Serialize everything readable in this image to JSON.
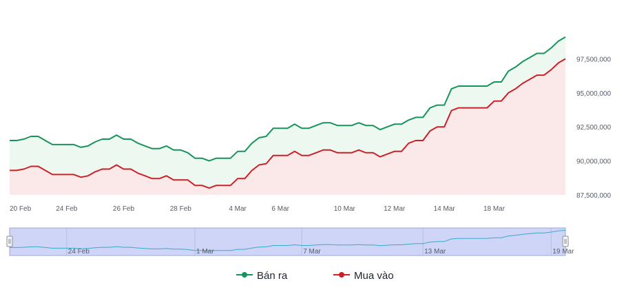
{
  "chart_data": {
    "type": "area",
    "x_ticks": [
      "20 Feb",
      "24 Feb",
      "26 Feb",
      "28 Feb",
      "4 Mar",
      "6 Mar",
      "10 Mar",
      "12 Mar",
      "14 Mar",
      "18 Mar"
    ],
    "y_ticks": [
      "97,500,000",
      "95,000,000",
      "92,500,000",
      "90,000,000",
      "87,500,000"
    ],
    "y_tick_values": [
      97500000,
      95000000,
      92500000,
      90000000,
      87500000
    ],
    "ylim": [
      87500000,
      99800000
    ],
    "grid": false,
    "legend_position": "bottom",
    "series": [
      {
        "name": "Bán ra",
        "color": "#16935a",
        "fill": "#edf8f1",
        "values": [
          91500000,
          91500000,
          91600000,
          91800000,
          91800000,
          91500000,
          91200000,
          91200000,
          91200000,
          91200000,
          91000000,
          91100000,
          91400000,
          91600000,
          91600000,
          91900000,
          91600000,
          91600000,
          91300000,
          91100000,
          90900000,
          90900000,
          91100000,
          90800000,
          90800000,
          90600000,
          90200000,
          90200000,
          90000000,
          90200000,
          90200000,
          90200000,
          90700000,
          90700000,
          91300000,
          91700000,
          91800000,
          92400000,
          92400000,
          92400000,
          92700000,
          92400000,
          92400000,
          92600000,
          92800000,
          92800000,
          92600000,
          92600000,
          92600000,
          92800000,
          92600000,
          92600000,
          92300000,
          92500000,
          92700000,
          92700000,
          93000000,
          93200000,
          93200000,
          93900000,
          94100000,
          94100000,
          95300000,
          95500000,
          95500000,
          95500000,
          95500000,
          95500000,
          95800000,
          95800000,
          96600000,
          96900000,
          97300000,
          97600000,
          97900000,
          97900000,
          98300000,
          98800000,
          99100000
        ]
      },
      {
        "name": "Mua vào",
        "color": "#cc2027",
        "fill": "#fbe9e9",
        "values": [
          89300000,
          89300000,
          89400000,
          89600000,
          89600000,
          89300000,
          89000000,
          89000000,
          89000000,
          89000000,
          88800000,
          88900000,
          89200000,
          89400000,
          89400000,
          89700000,
          89400000,
          89400000,
          89100000,
          88900000,
          88700000,
          88700000,
          88900000,
          88600000,
          88600000,
          88600000,
          88200000,
          88200000,
          88000000,
          88200000,
          88200000,
          88200000,
          88700000,
          88700000,
          89300000,
          89700000,
          89800000,
          90400000,
          90400000,
          90400000,
          90700000,
          90400000,
          90400000,
          90600000,
          90800000,
          90800000,
          90600000,
          90600000,
          90600000,
          90800000,
          90600000,
          90600000,
          90300000,
          90500000,
          90700000,
          90700000,
          91300000,
          91500000,
          91500000,
          92200000,
          92500000,
          92500000,
          93700000,
          93900000,
          93900000,
          93900000,
          93900000,
          93900000,
          94400000,
          94400000,
          95000000,
          95300000,
          95700000,
          96000000,
          96300000,
          96300000,
          96700000,
          97200000,
          97500000
        ]
      }
    ],
    "navigator": {
      "tick_labels": [
        "24 Feb",
        "1 Mar",
        "7 Mar",
        "13 Mar",
        "19 Mar"
      ],
      "tick_indices": [
        8,
        26,
        41,
        58,
        76
      ]
    },
    "x_tick_indices": [
      0,
      8,
      16,
      24,
      32,
      38,
      47,
      54,
      61,
      68
    ]
  }
}
